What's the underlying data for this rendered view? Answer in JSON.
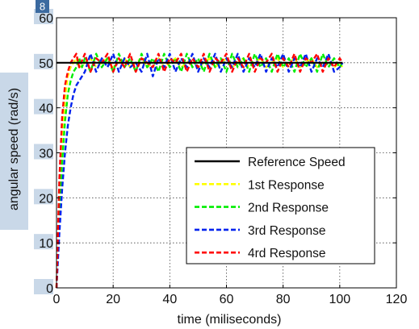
{
  "page_badge": "8",
  "chart_data": {
    "type": "line",
    "title": "",
    "xlabel": "time (miliseconds)",
    "ylabel": "angular speed (rad/s)",
    "xlim": [
      0,
      120
    ],
    "ylim": [
      0,
      60
    ],
    "x_ticks": [
      0,
      20,
      40,
      60,
      80,
      100,
      120
    ],
    "y_ticks": [
      0,
      10,
      20,
      30,
      40,
      50,
      60
    ],
    "grid": true,
    "legend_position": "bottom-right",
    "series": [
      {
        "name": "Reference Speed",
        "color": "#000000",
        "style": "solid",
        "x": [
          0,
          101
        ],
        "values": [
          50,
          50
        ]
      },
      {
        "name": "1st Response",
        "color": "#ffff00",
        "style": "dashed",
        "x": [
          0,
          1,
          2,
          3,
          4,
          5,
          6,
          7,
          8,
          10,
          12,
          14,
          16,
          18,
          20,
          22,
          24,
          26,
          28,
          30,
          32,
          34,
          36,
          38,
          40,
          42,
          44,
          46,
          48,
          50,
          52,
          54,
          56,
          58,
          60,
          62,
          64,
          66,
          68,
          70,
          72,
          74,
          76,
          78,
          80,
          82,
          84,
          86,
          88,
          90,
          92,
          94,
          96,
          98,
          100,
          101
        ],
        "values": [
          0,
          20,
          33,
          42,
          47,
          49,
          50,
          51,
          49,
          50,
          51,
          49,
          50,
          51,
          49,
          50,
          51,
          49,
          50,
          51,
          49,
          50,
          51,
          49,
          50,
          51,
          49,
          50,
          51,
          49,
          50,
          51,
          49,
          50,
          51,
          49,
          50,
          51,
          49,
          50,
          51,
          49,
          50,
          51,
          49,
          50,
          51,
          49,
          50,
          51,
          49,
          50,
          51,
          49,
          50,
          49
        ]
      },
      {
        "name": "2nd Response",
        "color": "#00ee00",
        "style": "dashed",
        "x": [
          0,
          1,
          2,
          3,
          4,
          5,
          6,
          7,
          8,
          9,
          10,
          12,
          14,
          16,
          18,
          20,
          22,
          24,
          26,
          28,
          30,
          32,
          34,
          36,
          38,
          40,
          42,
          44,
          46,
          48,
          50,
          52,
          54,
          56,
          58,
          60,
          62,
          64,
          66,
          68,
          70,
          72,
          74,
          76,
          78,
          80,
          82,
          84,
          86,
          88,
          90,
          92,
          94,
          96,
          98,
          100,
          101
        ],
        "values": [
          0,
          16,
          28,
          37,
          43,
          46,
          48,
          49,
          51,
          49,
          51,
          48,
          52,
          49,
          51,
          48,
          52,
          49,
          51,
          48,
          52,
          49,
          51,
          48,
          52,
          49,
          51,
          48,
          52,
          49,
          51,
          48,
          52,
          49,
          51,
          48,
          52,
          49,
          51,
          48,
          52,
          49,
          51,
          48,
          52,
          49,
          51,
          48,
          52,
          49,
          51,
          48,
          52,
          49,
          51,
          49,
          50
        ]
      },
      {
        "name": "3rd Response",
        "color": "#0022ee",
        "style": "dashed",
        "x": [
          0,
          1,
          2,
          3,
          4,
          5,
          6,
          7,
          8,
          9,
          10,
          11,
          12,
          14,
          16,
          18,
          20,
          22,
          24,
          26,
          28,
          30,
          32,
          34,
          36,
          38,
          40,
          42,
          44,
          46,
          48,
          50,
          52,
          54,
          56,
          58,
          60,
          62,
          64,
          66,
          68,
          70,
          72,
          74,
          76,
          78,
          80,
          82,
          84,
          86,
          88,
          90,
          92,
          94,
          96,
          98,
          100,
          101
        ],
        "values": [
          0,
          12,
          22,
          30,
          36,
          40,
          43,
          45,
          46,
          47,
          48,
          50,
          52,
          48,
          51,
          49,
          52,
          48,
          51,
          49,
          50,
          48,
          52,
          47,
          51,
          49,
          52,
          48,
          51,
          49,
          52,
          48,
          51,
          49,
          52,
          48,
          51,
          49,
          52,
          48,
          51,
          49,
          52,
          48,
          51,
          49,
          52,
          48,
          51,
          49,
          52,
          48,
          51,
          49,
          52,
          48,
          49,
          50
        ]
      },
      {
        "name": "4rd Response",
        "color": "#ff0000",
        "style": "dashed",
        "x": [
          0,
          1,
          2,
          3,
          4,
          5,
          6,
          7,
          8,
          10,
          12,
          14,
          16,
          18,
          20,
          22,
          24,
          26,
          28,
          30,
          32,
          34,
          36,
          38,
          40,
          42,
          44,
          46,
          48,
          50,
          52,
          54,
          56,
          58,
          60,
          62,
          64,
          66,
          68,
          70,
          72,
          74,
          76,
          78,
          80,
          82,
          84,
          86,
          88,
          90,
          92,
          94,
          96,
          98,
          100,
          101
        ],
        "values": [
          0,
          24,
          38,
          45,
          48,
          50,
          51,
          52,
          49,
          52,
          48,
          51,
          50,
          52,
          48,
          51,
          49,
          52,
          48,
          51,
          50,
          49,
          52,
          48,
          51,
          50,
          52,
          48,
          51,
          49,
          52,
          48,
          51,
          50,
          52,
          48,
          51,
          49,
          52,
          48,
          51,
          50,
          52,
          48,
          51,
          49,
          52,
          48,
          51,
          50,
          52,
          48,
          51,
          49,
          51,
          50
        ]
      }
    ]
  }
}
